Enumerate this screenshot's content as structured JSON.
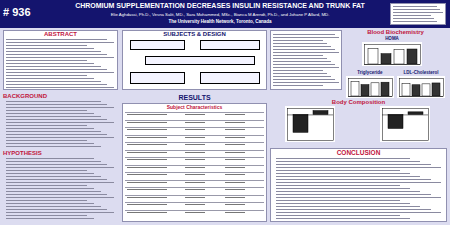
{
  "header": {
    "number": "# 936",
    "title": "CHROMIUM SUPPLEMENTATION DECREASES INSULIN RESISTANCE AND TRUNK FAT",
    "authors": "Elie Aghdassi, Ph.D., Vesna Salit, MD., Sara Mohammed, MSc., Bianca M Arendt, Ph.D., and Johane P Allard, MD.",
    "institution": "The University Health Network, Toronto, Canada"
  },
  "sections": {
    "abstract": "ABSTRACT",
    "background": "BACKGROUND",
    "hypothesis": "HYPOTHESIS",
    "design": "SUBJECTS & DESIGN",
    "results": "RESULTS",
    "table_title": "Subject Characteristics",
    "blood": "Blood Biochemistry",
    "body": "Body Composition",
    "conclusion": "CONCLUSION"
  },
  "chart_data": [
    {
      "type": "bar",
      "title": "HOMA",
      "categories": [
        null,
        null,
        null,
        null
      ],
      "values": [
        4.6,
        3.1,
        4.3,
        4.5
      ],
      "colors": [
        "#ffffff",
        "#333333",
        "#ffffff",
        "#333333"
      ],
      "ylim": [
        0,
        6
      ],
      "tick_labels": false
    },
    {
      "type": "bar",
      "title": "Triglyceride",
      "categories": [
        null,
        null,
        null,
        null
      ],
      "values": [
        2.4,
        1.9,
        2.2,
        2.3
      ],
      "colors": [
        "#ffffff",
        "#333333",
        "#ffffff",
        "#333333"
      ],
      "ylim": [
        0,
        3
      ],
      "tick_labels": false
    },
    {
      "type": "bar",
      "title": "LDL-Cholesterol",
      "categories": [
        null,
        null,
        null,
        null
      ],
      "values": [
        2.8,
        2.5,
        2.7,
        2.9
      ],
      "colors": [
        "#ffffff",
        "#333333",
        "#ffffff",
        "#333333"
      ],
      "ylim": [
        0,
        4
      ],
      "tick_labels": false
    },
    {
      "type": "bar",
      "categories": [
        null,
        null
      ],
      "values": [
        -1.4,
        0.3
      ],
      "colors": [
        "#222222",
        "#222222"
      ],
      "ylim": [
        -2,
        0.5
      ],
      "tick_labels": false
    },
    {
      "type": "bar",
      "categories": [
        null,
        null
      ],
      "values": [
        -1.1,
        0.2
      ],
      "colors": [
        "#222222",
        "#222222"
      ],
      "ylim": [
        -2,
        0.5
      ],
      "tick_labels": false
    }
  ]
}
